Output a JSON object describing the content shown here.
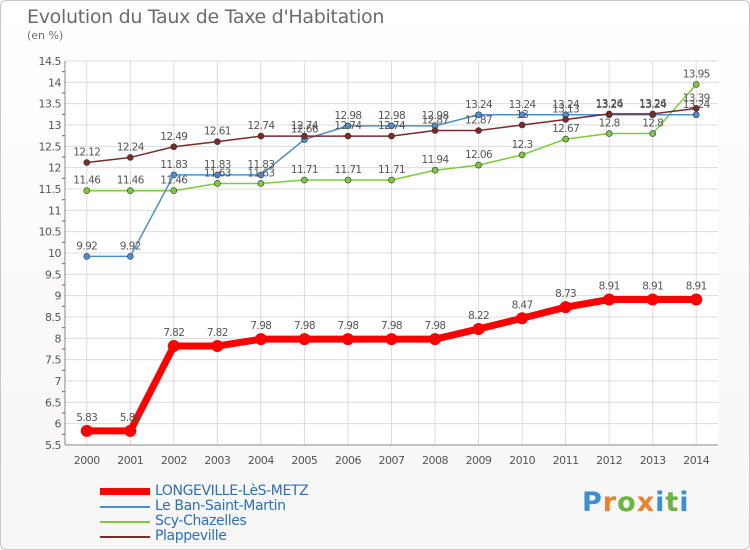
{
  "header": {
    "title": "Evolution du Taux de Taxe d'Habitation",
    "unit": "(en %)"
  },
  "brand": {
    "letters": [
      "P",
      "r",
      "o",
      "x",
      "i",
      "t",
      "i"
    ],
    "colors": [
      "#3a8fd6",
      "#e8842c",
      "#6cb33f",
      "#e8842c",
      "#3a8fd6",
      "#6cb33f",
      "#3a8fd6"
    ]
  },
  "chart_data": {
    "type": "line",
    "title": "Evolution du Taux de Taxe d'Habitation",
    "ylabel": "(en %)",
    "xlabel": "",
    "x": [
      "2000",
      "2001",
      "2002",
      "2003",
      "2004",
      "2005",
      "2006",
      "2007",
      "2008",
      "2009",
      "2010",
      "2011",
      "2012",
      "2013",
      "2014"
    ],
    "ylim": [
      5.5,
      14.5
    ],
    "yticks": [
      "5.5",
      "6",
      "6.5",
      "7",
      "7.5",
      "8",
      "8.5",
      "9",
      "9.5",
      "10",
      "10.5",
      "11",
      "11.5",
      "12",
      "12.5",
      "13",
      "13.5",
      "14",
      "14.5"
    ],
    "grid": true,
    "series": [
      {
        "name": "LONGEVILLE-LèS-METZ",
        "color": "#ff0000",
        "thick": true,
        "values": [
          5.83,
          5.83,
          7.82,
          7.82,
          7.98,
          7.98,
          7.98,
          7.98,
          7.98,
          8.22,
          8.47,
          8.73,
          8.91,
          8.91,
          8.91
        ],
        "labels": [
          "5.83",
          "5.83",
          "7.82",
          "7.82",
          "7.98",
          "7.98",
          "7.98",
          "7.98",
          "7.98",
          "8.22",
          "8.47",
          "8.73",
          "8.91",
          "8.91",
          "8.91"
        ]
      },
      {
        "name": "Le Ban-Saint-Martin",
        "color": "#4a90d0",
        "thick": false,
        "values": [
          9.92,
          9.92,
          11.83,
          11.83,
          11.83,
          12.66,
          12.98,
          12.98,
          12.98,
          13.24,
          13.24,
          13.24,
          13.24,
          13.24,
          13.24
        ],
        "labels": [
          "9.92",
          "9.92",
          "11.83",
          "11.83",
          "11.83",
          "12.66",
          "12.98",
          "12.98",
          "12.98",
          "13.24",
          "13.24",
          "13.24",
          "13.24",
          "13.24",
          "13.24"
        ]
      },
      {
        "name": "Scy-Chazelles",
        "color": "#7ccb3c",
        "thick": false,
        "values": [
          11.46,
          11.46,
          11.46,
          11.63,
          11.63,
          11.71,
          11.71,
          11.71,
          11.94,
          12.06,
          12.3,
          12.67,
          12.8,
          12.8,
          13.95
        ],
        "labels": [
          "11.46",
          "11.46",
          "11.46",
          "11.63",
          "11.63",
          "11.71",
          "11.71",
          "11.71",
          "11.94",
          "12.06",
          "12.3",
          "12.67",
          "12.8",
          "12.8",
          "13.95"
        ]
      },
      {
        "name": "Plappeville",
        "color": "#7a2a2a",
        "thick": false,
        "values": [
          12.12,
          12.24,
          12.49,
          12.61,
          12.74,
          12.74,
          12.74,
          12.74,
          12.87,
          12.87,
          13.0,
          13.13,
          13.26,
          13.26,
          13.39
        ],
        "labels": [
          "12.12",
          "12.24",
          "12.49",
          "12.61",
          "12.74",
          "12.74",
          "12.74",
          "12.74",
          "12.87",
          "12.87",
          "13",
          "13.13",
          "13.26",
          "13.26",
          "13.39"
        ]
      }
    ]
  }
}
